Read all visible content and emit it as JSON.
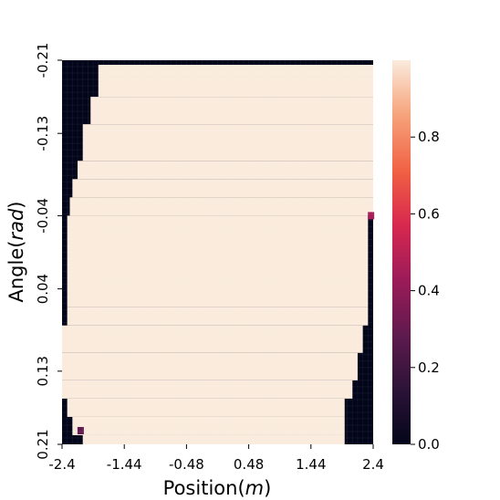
{
  "chart_data": {
    "type": "heatmap",
    "title": "",
    "xlabel": "Position",
    "xlabel_unit": "m",
    "ylabel": "Angle",
    "ylabel_unit": "rad",
    "xlim": [
      -2.4,
      2.4
    ],
    "ylim": [
      -0.21,
      0.21
    ],
    "y_direction": "top-to-bottom",
    "x_ticks": [
      "-2.4",
      "-1.44",
      "-0.48",
      "0.48",
      "1.44",
      "2.4"
    ],
    "y_ticks": [
      "-0.21",
      "-0.13",
      "-0.04",
      "0.04",
      "0.13",
      "0.21"
    ],
    "grid": true,
    "value_range": [
      0,
      1
    ],
    "colorbar": {
      "position": "right",
      "ticks": [
        "0.0",
        "0.2",
        "0.4",
        "0.6",
        "0.8"
      ],
      "colormap": [
        "#03051a",
        "#2b1337",
        "#5d1a4e",
        "#9d1b59",
        "#d8284f",
        "#f06043",
        "#f6a47c",
        "#faebdd"
      ]
    },
    "region_value": 1.0,
    "background_value": 0.0,
    "region_boundary": [
      {
        "y": -0.21,
        "x_min": -2.4,
        "x_max": 2.4,
        "note": "top row low"
      },
      {
        "y": -0.205,
        "x_min": -1.84,
        "x_max": 2.4
      },
      {
        "y": -0.17,
        "x_min": -1.96,
        "x_max": 2.4
      },
      {
        "y": -0.14,
        "x_min": -2.08,
        "x_max": 2.4
      },
      {
        "y": -0.1,
        "x_min": -2.16,
        "x_max": 2.4
      },
      {
        "y": -0.08,
        "x_min": -2.24,
        "x_max": 2.4
      },
      {
        "y": -0.06,
        "x_min": -2.28,
        "x_max": 2.4
      },
      {
        "y": -0.04,
        "x_min": -2.32,
        "x_max": 2.32
      },
      {
        "y": 0.0,
        "x_min": -2.32,
        "x_max": 2.32
      },
      {
        "y": 0.06,
        "x_min": -2.32,
        "x_max": 2.32
      },
      {
        "y": 0.08,
        "x_min": -2.4,
        "x_max": 2.24
      },
      {
        "y": 0.11,
        "x_min": -2.4,
        "x_max": 2.16
      },
      {
        "y": 0.14,
        "x_min": -2.4,
        "x_max": 2.08
      },
      {
        "y": 0.16,
        "x_min": -2.32,
        "x_max": 1.96
      },
      {
        "y": 0.18,
        "x_min": -2.24,
        "x_max": 1.96
      },
      {
        "y": 0.2,
        "x_min": -2.08,
        "x_max": 1.96
      },
      {
        "y": 0.21,
        "x_min": -2.4,
        "x_max": -2.4,
        "note": "bottom row low"
      }
    ],
    "isolated_cells": [
      {
        "x": 2.36,
        "y": -0.04,
        "value": 0.45
      },
      {
        "x": -2.12,
        "y": 0.195,
        "value": 0.3
      }
    ]
  }
}
